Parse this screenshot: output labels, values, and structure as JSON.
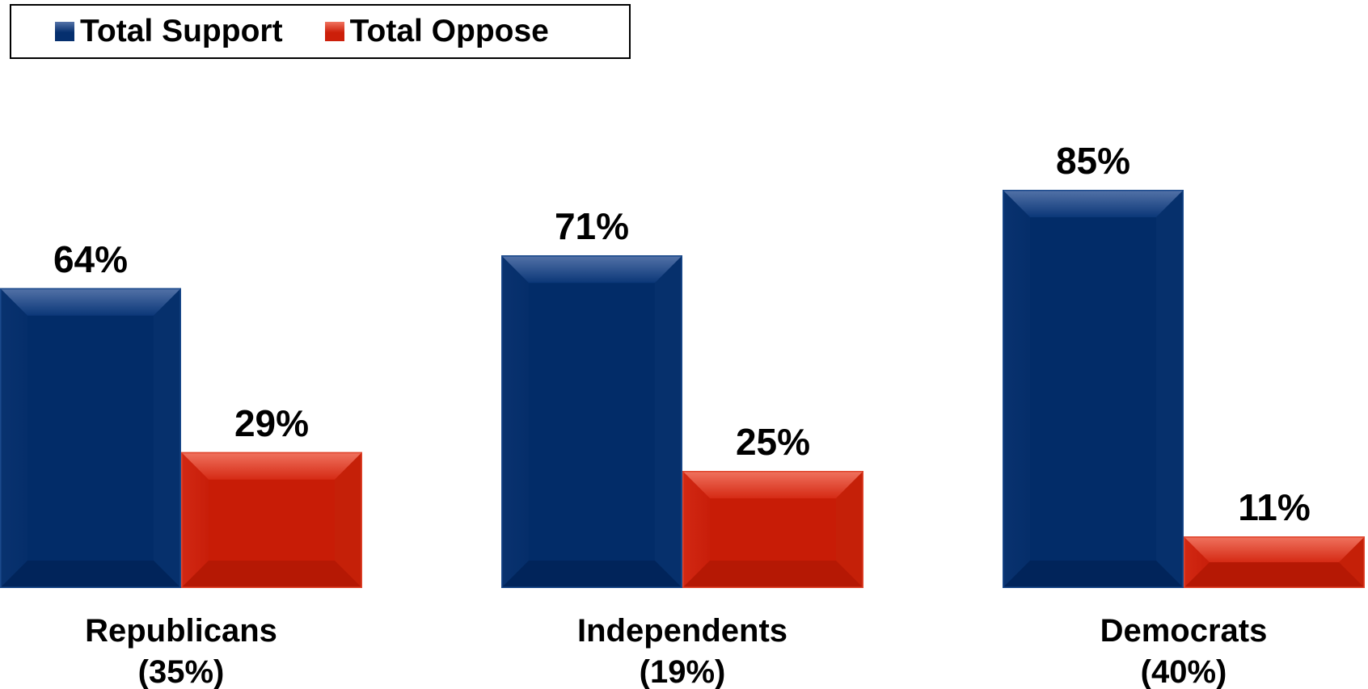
{
  "chart_data": {
    "type": "bar",
    "categories": [
      "Republicans\n(35%)",
      "Independents\n(19%)",
      "Democrats\n(40%)"
    ],
    "series": [
      {
        "name": "Total Support",
        "values": [
          64,
          71,
          85
        ],
        "labels": [
          "64%",
          "71%",
          "85%"
        ],
        "color": "#052f6e"
      },
      {
        "name": "Total Oppose",
        "values": [
          29,
          25,
          11
        ],
        "labels": [
          "29%",
          "25%",
          "11%"
        ],
        "color": "#cc1f0a"
      }
    ],
    "ylim": [
      0,
      100
    ],
    "grid": false,
    "legend_position": "top-left"
  }
}
